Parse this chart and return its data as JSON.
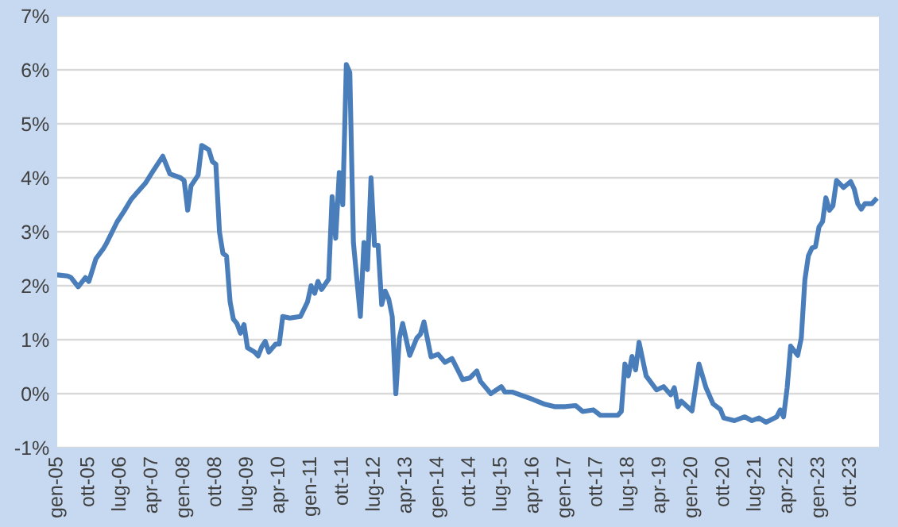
{
  "chart_data": {
    "type": "line",
    "color": "#4a7ebb",
    "grid": "y",
    "marker": "none",
    "line_style": "solid",
    "x": [
      "2005-01",
      "2005-04",
      "2005-05",
      "2005-07",
      "2005-09",
      "2005-10",
      "2005-12",
      "2006-02",
      "2006-03",
      "2006-06",
      "2006-08",
      "2006-10",
      "2006-12",
      "2007-02",
      "2007-04",
      "2007-07",
      "2007-09",
      "2007-12",
      "2008-01",
      "2008-02",
      "2008-03",
      "2008-05",
      "2008-06",
      "2008-08",
      "2008-09",
      "2008-10",
      "2008-11",
      "2008-12",
      "2009-01",
      "2009-02",
      "2009-03",
      "2009-04",
      "2009-05",
      "2009-06",
      "2009-07",
      "2009-09",
      "2009-10",
      "2009-11",
      "2009-12",
      "2010-01",
      "2010-03",
      "2010-04",
      "2010-05",
      "2010-07",
      "2010-10",
      "2010-12",
      "2011-01",
      "2011-02",
      "2011-03",
      "2011-04",
      "2011-06",
      "2011-07",
      "2011-08",
      "2011-09",
      "2011-10",
      "2011-11",
      "2011-12",
      "2012-01",
      "2012-03",
      "2012-04",
      "2012-05",
      "2012-06",
      "2012-07",
      "2012-08",
      "2012-09",
      "2012-10",
      "2012-11",
      "2012-12",
      "2013-01",
      "2013-02",
      "2013-03",
      "2013-05",
      "2013-07",
      "2013-08",
      "2013-09",
      "2013-11",
      "2014-01",
      "2014-03",
      "2014-05",
      "2014-08",
      "2014-10",
      "2014-12",
      "2015-01",
      "2015-04",
      "2015-07",
      "2015-08",
      "2015-10",
      "2016-01",
      "2016-04",
      "2016-07",
      "2016-10",
      "2017-01",
      "2017-04",
      "2017-06",
      "2017-09",
      "2017-11",
      "2018-04",
      "2018-05",
      "2018-06",
      "2018-07",
      "2018-08",
      "2018-09",
      "2018-10",
      "2018-12",
      "2019-03",
      "2019-05",
      "2019-07",
      "2019-08",
      "2019-09",
      "2019-10",
      "2020-01",
      "2020-03",
      "2020-05",
      "2020-07",
      "2020-09",
      "2020-10",
      "2021-01",
      "2021-04",
      "2021-06",
      "2021-08",
      "2021-10",
      "2022-01",
      "2022-02",
      "2022-03",
      "2022-04",
      "2022-05",
      "2022-07",
      "2022-08",
      "2022-09",
      "2022-10",
      "2022-11",
      "2022-12",
      "2023-01",
      "2023-02",
      "2023-03",
      "2023-04",
      "2023-05",
      "2023-06",
      "2023-08",
      "2023-10",
      "2023-11",
      "2023-12",
      "2024-01",
      "2024-02",
      "2024-04",
      "2024-05"
    ],
    "values": [
      2.2,
      2.18,
      2.15,
      1.98,
      2.15,
      2.08,
      2.5,
      2.68,
      2.78,
      3.18,
      3.38,
      3.6,
      3.75,
      3.9,
      4.1,
      4.4,
      4.07,
      4.0,
      3.95,
      3.4,
      3.85,
      4.05,
      4.6,
      4.52,
      4.3,
      4.25,
      3.0,
      2.6,
      2.55,
      1.7,
      1.38,
      1.3,
      1.12,
      1.28,
      0.85,
      0.77,
      0.7,
      0.87,
      0.97,
      0.77,
      0.92,
      0.92,
      1.43,
      1.4,
      1.43,
      1.7,
      2.0,
      1.86,
      2.08,
      1.93,
      2.12,
      3.65,
      2.88,
      4.1,
      3.5,
      6.1,
      5.95,
      2.8,
      1.43,
      2.8,
      2.3,
      4.0,
      2.75,
      2.75,
      1.65,
      1.9,
      1.75,
      1.43,
      0.0,
      1.03,
      1.3,
      0.71,
      1.03,
      1.1,
      1.33,
      0.68,
      0.73,
      0.58,
      0.65,
      0.26,
      0.29,
      0.42,
      0.23,
      0.0,
      0.13,
      0.03,
      0.03,
      -0.04,
      -0.11,
      -0.19,
      -0.24,
      -0.24,
      -0.22,
      -0.33,
      -0.3,
      -0.4,
      -0.4,
      -0.33,
      0.55,
      0.33,
      0.69,
      0.44,
      0.95,
      0.33,
      0.07,
      0.13,
      -0.02,
      0.11,
      -0.24,
      -0.14,
      -0.32,
      0.55,
      0.11,
      -0.19,
      -0.29,
      -0.45,
      -0.5,
      -0.43,
      -0.5,
      -0.45,
      -0.53,
      -0.43,
      -0.3,
      -0.43,
      0.11,
      0.88,
      0.71,
      1.03,
      2.11,
      2.55,
      2.7,
      2.72,
      3.09,
      3.19,
      3.63,
      3.4,
      3.48,
      3.95,
      3.82,
      3.93,
      3.79,
      3.52,
      3.42,
      3.52,
      3.52,
      3.59
    ],
    "xlim": [
      "2005-01",
      "2024-06"
    ],
    "xticks": [
      {
        "value": "2005-01",
        "label": "gen-05"
      },
      {
        "value": "2005-10",
        "label": "ott-05"
      },
      {
        "value": "2006-07",
        "label": "lug-06"
      },
      {
        "value": "2007-04",
        "label": "apr-07"
      },
      {
        "value": "2008-01",
        "label": "gen-08"
      },
      {
        "value": "2008-10",
        "label": "ott-08"
      },
      {
        "value": "2009-07",
        "label": "lug-09"
      },
      {
        "value": "2010-04",
        "label": "apr-10"
      },
      {
        "value": "2011-01",
        "label": "gen-11"
      },
      {
        "value": "2011-10",
        "label": "ott-11"
      },
      {
        "value": "2012-07",
        "label": "lug-12"
      },
      {
        "value": "2013-04",
        "label": "apr-13"
      },
      {
        "value": "2014-01",
        "label": "gen-14"
      },
      {
        "value": "2014-10",
        "label": "ott-14"
      },
      {
        "value": "2015-07",
        "label": "lug-15"
      },
      {
        "value": "2016-04",
        "label": "apr-16"
      },
      {
        "value": "2017-01",
        "label": "gen-17"
      },
      {
        "value": "2017-10",
        "label": "ott-17"
      },
      {
        "value": "2018-07",
        "label": "lug-18"
      },
      {
        "value": "2019-04",
        "label": "apr-19"
      },
      {
        "value": "2020-01",
        "label": "gen-20"
      },
      {
        "value": "2020-10",
        "label": "ott-20"
      },
      {
        "value": "2021-07",
        "label": "lug-21"
      },
      {
        "value": "2022-04",
        "label": "apr-22"
      },
      {
        "value": "2023-01",
        "label": "gen-23"
      },
      {
        "value": "2023-10",
        "label": "ott-23"
      }
    ],
    "ylim": [
      -1,
      7
    ],
    "yticks": [
      {
        "value": -1,
        "label": "-1%"
      },
      {
        "value": 0,
        "label": "0%"
      },
      {
        "value": 1,
        "label": "1%"
      },
      {
        "value": 2,
        "label": "2%"
      },
      {
        "value": 3,
        "label": "3%"
      },
      {
        "value": 4,
        "label": "4%"
      },
      {
        "value": 5,
        "label": "5%"
      },
      {
        "value": 6,
        "label": "6%"
      },
      {
        "value": 7,
        "label": "7%"
      }
    ]
  }
}
